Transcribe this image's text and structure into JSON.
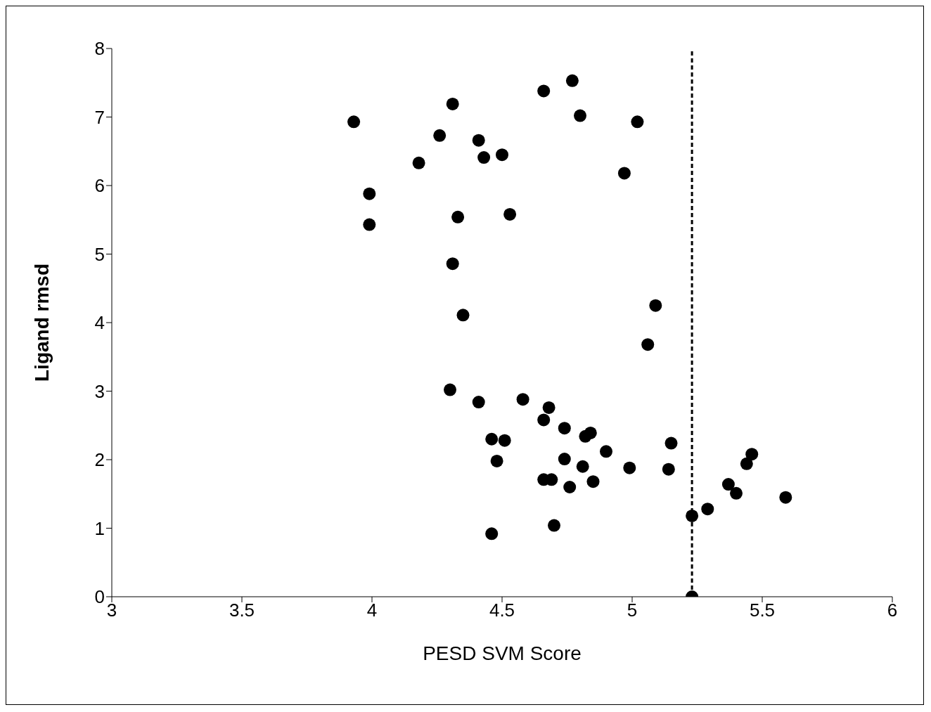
{
  "chart_data": {
    "type": "scatter",
    "xlabel": "PESD SVM Score",
    "ylabel": "Ligand rmsd",
    "xlim": [
      3,
      6
    ],
    "xticks": [
      3,
      3.5,
      4,
      4.5,
      5,
      5.5,
      6
    ],
    "ylim": [
      0,
      8
    ],
    "yticks": [
      0,
      1,
      2,
      3,
      4,
      5,
      6,
      7,
      8
    ],
    "marker": "circle",
    "series": [
      {
        "color": "#000000",
        "x": [
          3.93,
          3.99,
          3.99,
          4.18,
          4.26,
          4.31,
          4.41,
          4.43,
          4.5,
          4.33,
          4.53,
          4.31,
          4.35,
          4.66,
          4.77,
          4.8,
          5.02,
          4.97,
          5.09,
          5.06,
          4.3,
          4.41,
          4.58,
          4.68,
          4.66,
          4.74,
          4.46,
          4.51,
          4.48,
          4.82,
          4.84,
          4.9,
          5.15,
          4.74,
          4.81,
          4.99,
          5.14,
          4.66,
          4.69,
          4.76,
          4.85,
          4.46,
          4.7,
          5.23,
          5.29,
          5.37,
          5.4,
          5.44,
          5.46,
          5.59,
          5.23
        ],
        "values": [
          6.93,
          5.88,
          5.43,
          6.33,
          6.73,
          7.19,
          6.66,
          6.41,
          6.45,
          5.54,
          5.58,
          4.86,
          4.11,
          7.38,
          7.53,
          7.02,
          6.93,
          6.18,
          4.25,
          3.68,
          3.02,
          2.84,
          2.88,
          2.76,
          2.58,
          2.46,
          2.3,
          2.28,
          1.98,
          2.34,
          2.39,
          2.12,
          2.24,
          2.01,
          1.9,
          1.88,
          1.86,
          1.71,
          1.71,
          1.6,
          1.68,
          0.92,
          1.04,
          1.18,
          1.28,
          1.64,
          1.51,
          1.94,
          2.08,
          1.45,
          0
        ]
      }
    ],
    "ref_lines": [
      {
        "axis": "x",
        "value": 5.23,
        "color": "#000000",
        "line_style": "dashed"
      }
    ]
  }
}
